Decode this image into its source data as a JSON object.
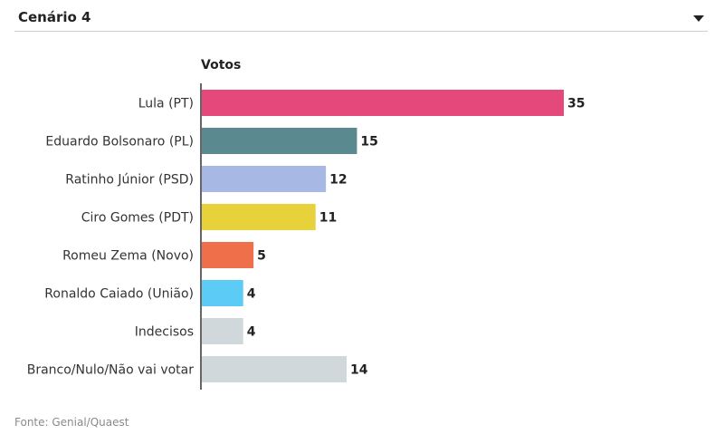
{
  "selector": {
    "selected": "Cenário 4",
    "icon": "chevron-down-icon"
  },
  "chart_data": {
    "type": "bar",
    "orientation": "horizontal",
    "value_header": "Votos",
    "categories": [
      "Lula (PT)",
      "Eduardo Bolsonaro (PL)",
      "Ratinho Júnior (PSD)",
      "Ciro Gomes (PDT)",
      "Romeu Zema (Novo)",
      "Ronaldo Caiado (União)",
      "Indecisos",
      "Branco/Nulo/Não vai votar"
    ],
    "values": [
      35,
      15,
      12,
      11,
      5,
      4,
      4,
      14
    ],
    "colors": [
      "#e5487a",
      "#5a8a8f",
      "#a8b8e4",
      "#e8d23c",
      "#ef6f4a",
      "#5ccbf5",
      "#d1d8dc",
      "#d1d8dc"
    ],
    "xlim": [
      0,
      35
    ],
    "grid": false,
    "legend": "none"
  },
  "footer": {
    "source": "Fonte: Genial/Quaest"
  }
}
